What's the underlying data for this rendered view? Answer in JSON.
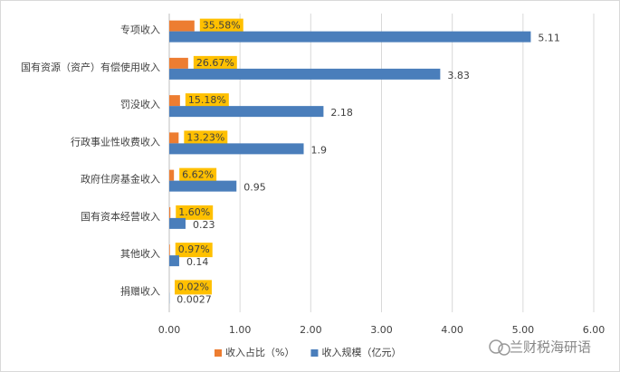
{
  "chart_data": {
    "type": "hbar",
    "categories": [
      "专项收入",
      "国有资源（资产）有偿使用收入",
      "罚没收入",
      "行政事业性收费收入",
      "政府住房基金收入",
      "国有资本经营收入",
      "其他收入",
      "捐赠收入"
    ],
    "series": [
      {
        "name": "收入占比（%）",
        "color": "#ed7d31",
        "values": [
          0.3558,
          0.2667,
          0.1518,
          0.1323,
          0.0662,
          0.016,
          0.0097,
          0.0002
        ],
        "value_labels": [
          "35.58%",
          "26.67%",
          "15.18%",
          "13.23%",
          "6.62%",
          "1.60%",
          "0.97%",
          "0.02%"
        ]
      },
      {
        "name": "收入规模（亿元）",
        "color": "#4a7ebb",
        "values": [
          5.11,
          3.83,
          2.18,
          1.9,
          0.95,
          0.23,
          0.14,
          0.0027
        ]
      }
    ],
    "xlim": [
      0,
      6
    ],
    "xticks": [
      {
        "value": 0,
        "label": "0.00"
      },
      {
        "value": 1,
        "label": "1.00"
      },
      {
        "value": 2,
        "label": "2.00"
      },
      {
        "value": 3,
        "label": "3.00"
      },
      {
        "value": 4,
        "label": "4.00"
      },
      {
        "value": 5,
        "label": "5.00"
      },
      {
        "value": 6,
        "label": "6.00"
      }
    ],
    "grid": true,
    "legend": "bottom",
    "watermark": "兰财税海研语"
  }
}
